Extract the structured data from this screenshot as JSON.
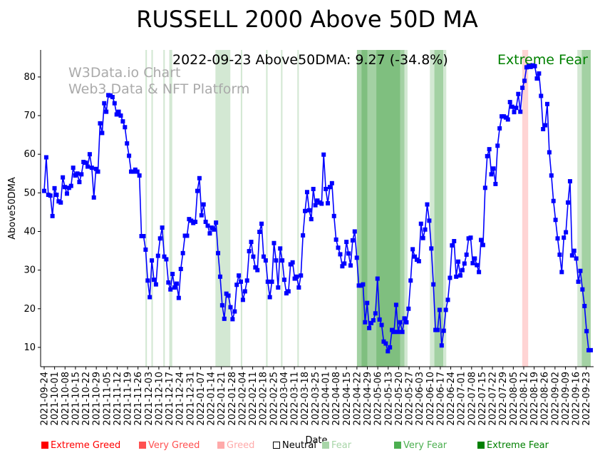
{
  "chart_data": {
    "type": "line",
    "title": "RUSSELL 2000 Above 50D MA",
    "annotation": "2022-09-23 Above50DMA: 9.27 (-34.8%)",
    "status_label": "Extreme Fear",
    "watermark": [
      "W3Data.io Chart",
      "Web3 Data & NFT Platform"
    ],
    "xlabel": "Date",
    "ylabel": "Above50DMA",
    "x_range": [
      "2021-09-24",
      "2022-09-26"
    ],
    "ylim": [
      5,
      87
    ],
    "y_ticks": [
      10,
      20,
      30,
      40,
      50,
      60,
      70,
      80
    ],
    "x_tick_labels": [
      "2021-09-24",
      "2021-10-01",
      "2021-10-08",
      "2021-10-15",
      "2021-10-22",
      "2021-10-29",
      "2021-11-05",
      "2021-11-12",
      "2021-11-19",
      "2021-11-26",
      "2021-12-03",
      "2021-12-10",
      "2021-12-17",
      "2021-12-24",
      "2021-12-31",
      "2022-01-07",
      "2022-01-14",
      "2022-01-21",
      "2022-01-28",
      "2022-02-04",
      "2022-02-11",
      "2022-02-18",
      "2022-02-25",
      "2022-03-04",
      "2022-03-11",
      "2022-03-18",
      "2022-03-25",
      "2022-04-01",
      "2022-04-08",
      "2022-04-15",
      "2022-04-22",
      "2022-04-29",
      "2022-05-06",
      "2022-05-13",
      "2022-05-20",
      "2022-05-27",
      "2022-06-03",
      "2022-06-10",
      "2022-06-17",
      "2022-06-24",
      "2022-07-01",
      "2022-07-08",
      "2022-07-15",
      "2022-07-22",
      "2022-07-29",
      "2022-08-05",
      "2022-08-12",
      "2022-08-19",
      "2022-08-26",
      "2022-09-02",
      "2022-09-09",
      "2022-09-16",
      "2022-09-23"
    ],
    "series": [
      {
        "name": "Above50DMA",
        "color": "#0000ff",
        "values": [
          50.5,
          59.2,
          49.5,
          49.3,
          44.0,
          51.2,
          49.5,
          47.8,
          47.5,
          54.0,
          51.5,
          49.8,
          51.3,
          51.8,
          56.5,
          54.5,
          55.0,
          52.8,
          54.8,
          58.0,
          57.8,
          56.8,
          60.0,
          56.5,
          48.8,
          56.2,
          55.5,
          68.0,
          65.5,
          73.2,
          71.0,
          75.3,
          75.2,
          74.8,
          73.2,
          70.3,
          71.0,
          70.0,
          68.5,
          67.0,
          62.8,
          59.6,
          55.5,
          55.5,
          56.0,
          55.5,
          54.5,
          38.8,
          38.8,
          35.3,
          27.3,
          23.0,
          32.5,
          27.5,
          26.3,
          33.7,
          38.2,
          41.0,
          33.5,
          32.8,
          26.8,
          25.0,
          29.0,
          25.5,
          26.5,
          22.8,
          30.3,
          34.4,
          38.9,
          38.9,
          43.2,
          42.8,
          42.2,
          42.5,
          50.5,
          53.8,
          44.2,
          47.0,
          42.5,
          41.5,
          39.5,
          41.0,
          40.5,
          42.3,
          34.4,
          28.3,
          20.9,
          17.4,
          23.9,
          23.4,
          20.4,
          17.3,
          19.3,
          26.2,
          28.6,
          27.0,
          22.3,
          24.5,
          27.3,
          34.9,
          37.3,
          33.5,
          30.7,
          30.0,
          39.9,
          42.0,
          33.5,
          32.5,
          27.0,
          23.0,
          27.0,
          37.0,
          32.5,
          25.5,
          35.6,
          32.5,
          27.5,
          24.0,
          24.5,
          31.5,
          32.0,
          27.8,
          28.3,
          25.5,
          28.6,
          39.0,
          45.3,
          50.2,
          45.5,
          43.2,
          51.0,
          46.8,
          48.0,
          47.5,
          47.2,
          59.9,
          51.0,
          47.3,
          51.5,
          52.5,
          44.0,
          37.9,
          35.8,
          34.1,
          31.0,
          31.7,
          37.3,
          34.3,
          31.2,
          37.7,
          40.0,
          33.2,
          26.0,
          26.0,
          26.3,
          16.5,
          21.5,
          15.0,
          16.3,
          17.0,
          18.8,
          27.8,
          17.2,
          15.8,
          11.5,
          11.0,
          9.0,
          10.0,
          14.5,
          14.0,
          21.0,
          14.0,
          16.5,
          14.0,
          17.5,
          16.5,
          20.0,
          27.3,
          35.4,
          33.5,
          32.7,
          32.3,
          42.0,
          38.3,
          40.5,
          47.0,
          42.8,
          35.6,
          26.3,
          14.5,
          14.5,
          19.7,
          10.5,
          14.3,
          19.7,
          22.3,
          28.0,
          36.4,
          37.5,
          28.3,
          32.2,
          28.6,
          30.0,
          31.7,
          34.0,
          38.2,
          38.4,
          31.8,
          33.0,
          31.3,
          29.5,
          37.8,
          36.5,
          51.3,
          59.5,
          61.3,
          54.8,
          56.3,
          52.3,
          62.2,
          66.7,
          69.8,
          69.8,
          69.5,
          69.0,
          73.5,
          72.3,
          70.9,
          72.0,
          75.6,
          71.0,
          77.2,
          79.0,
          82.5,
          82.8,
          82.6,
          83.0,
          82.8,
          79.6,
          80.9,
          75.1,
          66.5,
          67.5,
          73.0,
          60.5,
          54.5,
          47.9,
          43.0,
          38.2,
          34.0,
          29.5,
          38.4,
          39.8,
          47.5,
          53.0,
          33.8,
          35.0,
          33.0,
          27.0,
          29.8,
          25.0,
          20.7,
          14.2,
          9.27,
          9.27
        ]
      }
    ],
    "sentiment_bands": [
      {
        "level": "Fear",
        "start": "2021-12-01",
        "end": "2021-12-02"
      },
      {
        "level": "Fear",
        "start": "2021-12-05",
        "end": "2021-12-06"
      },
      {
        "level": "Fear",
        "start": "2021-12-13",
        "end": "2021-12-14"
      },
      {
        "level": "Fear",
        "start": "2021-12-17",
        "end": "2021-12-19"
      },
      {
        "level": "Fear",
        "start": "2022-01-17",
        "end": "2022-01-27"
      },
      {
        "level": "Fear",
        "start": "2022-02-03",
        "end": "2022-02-04"
      },
      {
        "level": "Fear",
        "start": "2022-02-20",
        "end": "2022-02-21"
      },
      {
        "level": "Fear",
        "start": "2022-03-02",
        "end": "2022-03-03"
      },
      {
        "level": "Fear",
        "start": "2022-03-13",
        "end": "2022-03-14"
      },
      {
        "level": "Very Fear",
        "start": "2022-04-22",
        "end": "2022-04-25"
      },
      {
        "level": "Extreme Fear",
        "start": "2022-04-25",
        "end": "2022-04-29"
      },
      {
        "level": "Very Fear",
        "start": "2022-04-29",
        "end": "2022-05-05"
      },
      {
        "level": "Extreme Fear",
        "start": "2022-05-05",
        "end": "2022-05-21"
      },
      {
        "level": "Very Fear",
        "start": "2022-05-21",
        "end": "2022-05-24"
      },
      {
        "level": "Fear",
        "start": "2022-05-24",
        "end": "2022-05-26"
      },
      {
        "level": "Fear",
        "start": "2022-06-10",
        "end": "2022-06-13"
      },
      {
        "level": "Very Fear",
        "start": "2022-06-13",
        "end": "2022-06-19"
      },
      {
        "level": "Fear",
        "start": "2022-06-19",
        "end": "2022-06-21"
      },
      {
        "level": "Greed",
        "start": "2022-08-11",
        "end": "2022-08-15"
      },
      {
        "level": "Fear",
        "start": "2022-09-17",
        "end": "2022-09-20"
      },
      {
        "level": "Very Fear",
        "start": "2022-09-20",
        "end": "2022-09-26"
      }
    ],
    "legend": [
      {
        "label": "Extreme Greed",
        "color": "#ff0000"
      },
      {
        "label": "Very Greed",
        "color": "#ff5050"
      },
      {
        "label": "Greed",
        "color": "#ffaaaa"
      },
      {
        "label": "Neutral",
        "color": "#000000"
      },
      {
        "label": "Fear",
        "color": "#a8d5a8"
      },
      {
        "label": "Very Fear",
        "color": "#4caf50"
      },
      {
        "label": "Extreme Fear",
        "color": "#008000"
      }
    ],
    "band_colors": {
      "Greed": "#ffd4d4",
      "Fear": "#d3e8d3",
      "Very Fear": "#a3d1a3",
      "Extreme Fear": "#7fbf7f"
    }
  }
}
